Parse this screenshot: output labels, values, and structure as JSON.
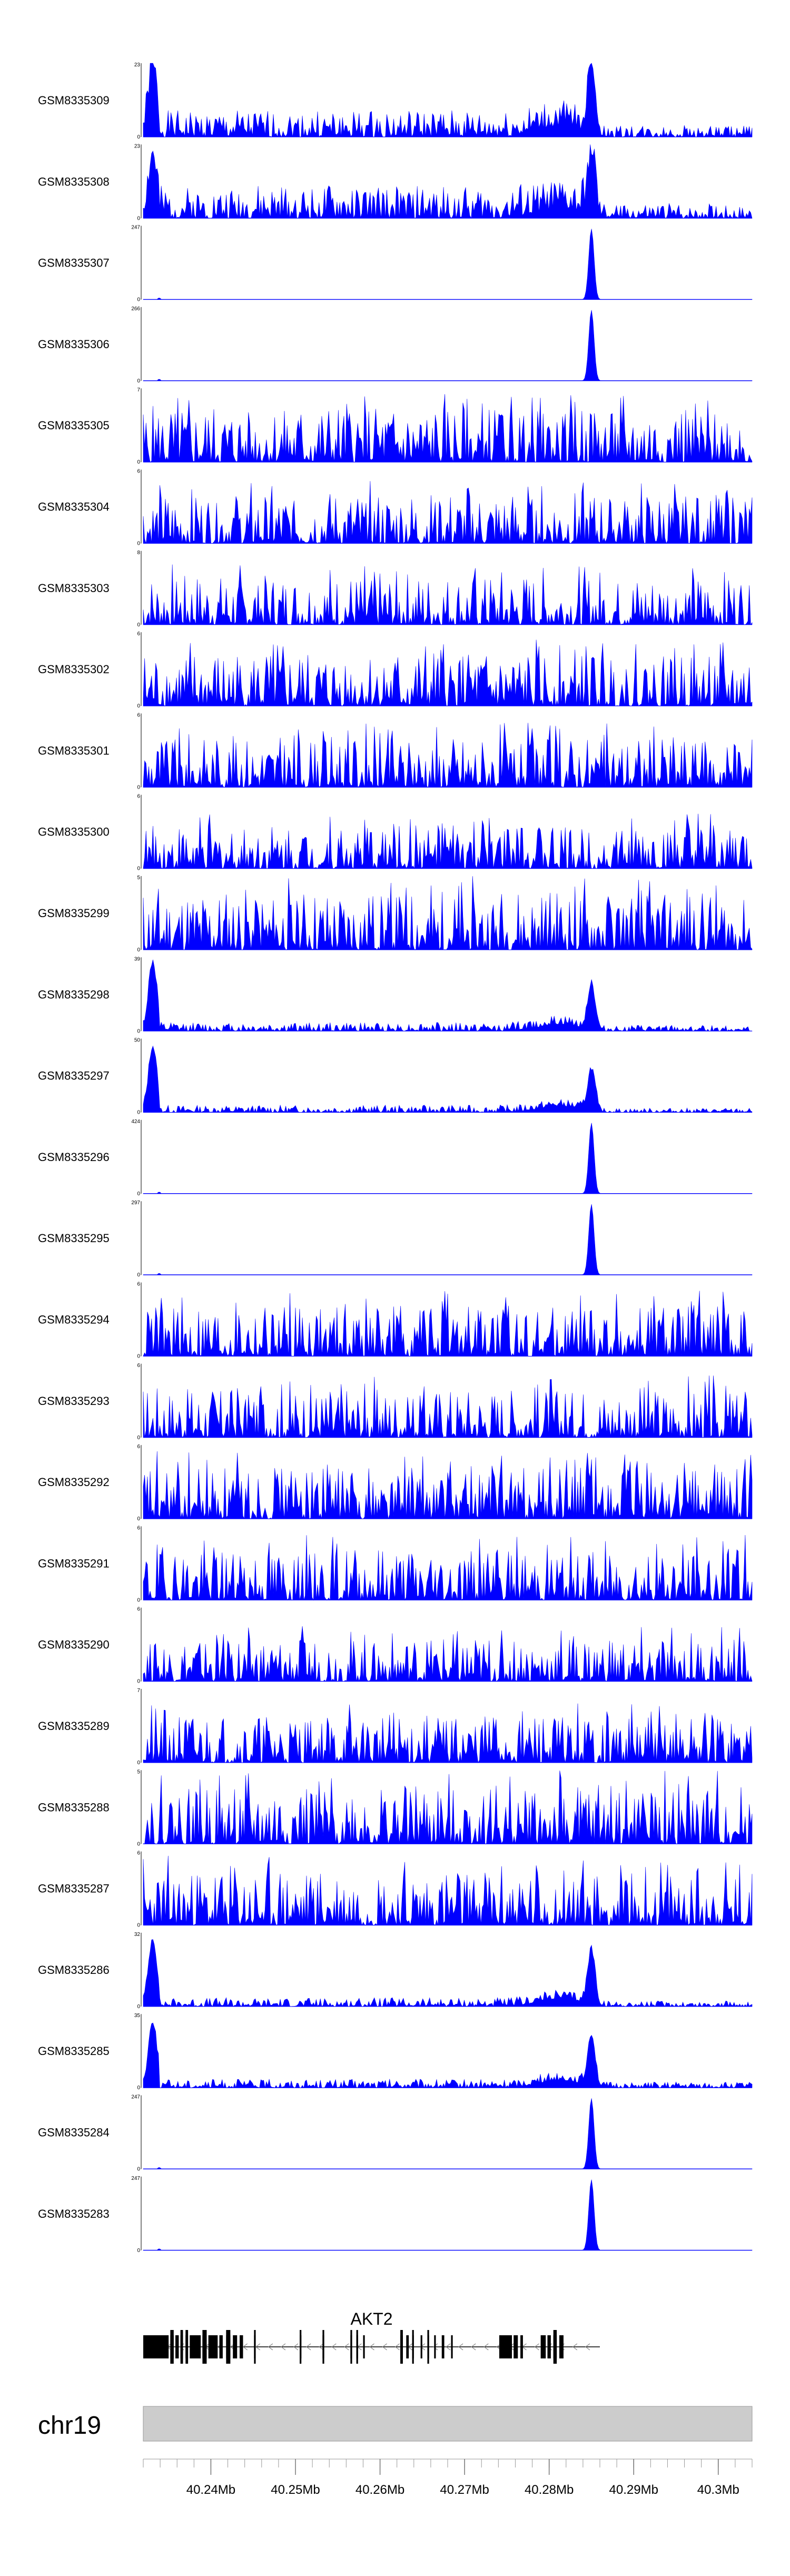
{
  "colors": {
    "signal": "#0000ff",
    "axis": "#000000",
    "ideogram": "#cccccc",
    "baseline": "#0000ff"
  },
  "chart_data": {
    "type": "area",
    "xlim": [
      40232000,
      40304000
    ],
    "tracks": [
      {
        "label": "GSM8335309",
        "ymax_label": "23",
        "ymin_label": "0",
        "max": 23,
        "profile": "noise-peak",
        "base": 0.18,
        "peak_height": 0.95,
        "left_spike": 0.9,
        "right_tail": 0.08,
        "seed": 1
      },
      {
        "label": "GSM8335308",
        "ymax_label": "23",
        "ymin_label": "0",
        "max": 23,
        "profile": "noise-peak",
        "base": 0.22,
        "peak_height": 0.8,
        "left_spike": 0.75,
        "right_tail": 0.1,
        "seed": 2
      },
      {
        "label": "GSM8335307",
        "ymax_label": "247",
        "ymin_label": "0",
        "max": 247,
        "profile": "single-peak",
        "peak_height": 0.96,
        "seed": 3
      },
      {
        "label": "GSM8335306",
        "ymax_label": "266",
        "ymin_label": "0",
        "max": 266,
        "profile": "single-peak",
        "peak_height": 0.96,
        "seed": 4
      },
      {
        "label": "GSM8335305",
        "ymax_label": "7",
        "ymin_label": "0",
        "max": 7,
        "profile": "noise",
        "base": 0.38,
        "seed": 5
      },
      {
        "label": "GSM8335304",
        "ymax_label": "6",
        "ymin_label": "0",
        "max": 6,
        "profile": "noise",
        "base": 0.34,
        "seed": 6
      },
      {
        "label": "GSM8335303",
        "ymax_label": "8",
        "ymin_label": "0",
        "max": 8,
        "profile": "noise",
        "base": 0.33,
        "seed": 7
      },
      {
        "label": "GSM8335302",
        "ymax_label": "6",
        "ymin_label": "0",
        "max": 6,
        "profile": "noise",
        "base": 0.36,
        "seed": 8
      },
      {
        "label": "GSM8335301",
        "ymax_label": "6",
        "ymin_label": "0",
        "max": 6,
        "profile": "noise",
        "base": 0.35,
        "seed": 9
      },
      {
        "label": "GSM8335300",
        "ymax_label": "6",
        "ymin_label": "0",
        "max": 6,
        "profile": "noise",
        "base": 0.3,
        "seed": 10
      },
      {
        "label": "GSM8335299",
        "ymax_label": "5",
        "ymin_label": "0",
        "max": 5,
        "profile": "noise",
        "base": 0.4,
        "seed": 11
      },
      {
        "label": "GSM8335298",
        "ymax_label": "39",
        "ymin_label": "0",
        "max": 39,
        "profile": "noise-peak",
        "base": 0.06,
        "peak_height": 0.6,
        "left_spike": 0.92,
        "right_tail": 0.04,
        "seed": 12
      },
      {
        "label": "GSM8335297",
        "ymax_label": "50",
        "ymin_label": "0",
        "max": 50,
        "profile": "noise-peak",
        "base": 0.05,
        "peak_height": 0.55,
        "left_spike": 0.88,
        "right_tail": 0.03,
        "seed": 13
      },
      {
        "label": "GSM8335296",
        "ymax_label": "424",
        "ymin_label": "0",
        "max": 424,
        "profile": "single-peak",
        "peak_height": 0.96,
        "seed": 14
      },
      {
        "label": "GSM8335295",
        "ymax_label": "297",
        "ymin_label": "0",
        "max": 297,
        "profile": "single-peak",
        "peak_height": 0.96,
        "seed": 15
      },
      {
        "label": "GSM8335294",
        "ymax_label": "6",
        "ymin_label": "0",
        "max": 6,
        "profile": "noise",
        "base": 0.36,
        "seed": 16
      },
      {
        "label": "GSM8335293",
        "ymax_label": "6",
        "ymin_label": "0",
        "max": 6,
        "profile": "noise",
        "base": 0.34,
        "seed": 17
      },
      {
        "label": "GSM8335292",
        "ymax_label": "6",
        "ymin_label": "0",
        "max": 6,
        "profile": "noise",
        "base": 0.37,
        "seed": 18
      },
      {
        "label": "GSM8335291",
        "ymax_label": "6",
        "ymin_label": "0",
        "max": 6,
        "profile": "noise",
        "base": 0.36,
        "seed": 19
      },
      {
        "label": "GSM8335290",
        "ymax_label": "6",
        "ymin_label": "0",
        "max": 6,
        "profile": "noise",
        "base": 0.3,
        "seed": 20
      },
      {
        "label": "GSM8335289",
        "ymax_label": "7",
        "ymin_label": "0",
        "max": 7,
        "profile": "noise",
        "base": 0.33,
        "seed": 21
      },
      {
        "label": "GSM8335288",
        "ymax_label": "5",
        "ymin_label": "0",
        "max": 5,
        "profile": "noise",
        "base": 0.4,
        "seed": 22
      },
      {
        "label": "GSM8335287",
        "ymax_label": "6",
        "ymin_label": "0",
        "max": 6,
        "profile": "noise",
        "base": 0.38,
        "seed": 23
      },
      {
        "label": "GSM8335286",
        "ymax_label": "32",
        "ymin_label": "0",
        "max": 32,
        "profile": "noise-peak",
        "base": 0.06,
        "peak_height": 0.72,
        "left_spike": 0.9,
        "right_tail": 0.04,
        "seed": 24
      },
      {
        "label": "GSM8335285",
        "ymax_label": "35",
        "ymin_label": "0",
        "max": 35,
        "profile": "noise-peak",
        "base": 0.06,
        "peak_height": 0.68,
        "left_spike": 0.88,
        "right_tail": 0.04,
        "seed": 25
      },
      {
        "label": "GSM8335284",
        "ymax_label": "247",
        "ymin_label": "0",
        "max": 247,
        "profile": "single-peak",
        "peak_height": 0.96,
        "seed": 26
      },
      {
        "label": "GSM8335283",
        "ymax_label": "247",
        "ymin_label": "0",
        "max": 247,
        "profile": "single-peak",
        "peak_height": 0.96,
        "seed": 27
      }
    ],
    "peak_position": 40285000,
    "gene": {
      "name": "AKT2",
      "strand": "-",
      "start": 40232000,
      "end": 40286000,
      "exons": [
        [
          40232000,
          40235000
        ],
        [
          40235200,
          40235600
        ],
        [
          40235800,
          40236200
        ],
        [
          40236400,
          40236700
        ],
        [
          40237000,
          40237300
        ],
        [
          40237500,
          40238800
        ],
        [
          40239000,
          40239500
        ],
        [
          40239700,
          40240800
        ],
        [
          40241000,
          40241400
        ],
        [
          40241800,
          40242300
        ],
        [
          40242600,
          40243100
        ],
        [
          40243400,
          40243800
        ],
        [
          40245100,
          40245300
        ],
        [
          40250500,
          40250700
        ],
        [
          40253200,
          40253400
        ],
        [
          40256500,
          40256700
        ],
        [
          40257200,
          40257400
        ],
        [
          40258000,
          40258200
        ],
        [
          40262400,
          40262700
        ],
        [
          40263100,
          40263400
        ],
        [
          40263800,
          40264000
        ],
        [
          40264800,
          40265000
        ],
        [
          40265600,
          40265800
        ],
        [
          40266400,
          40266600
        ],
        [
          40267300,
          40267600
        ],
        [
          40268400,
          40268600
        ],
        [
          40274100,
          40275600
        ],
        [
          40275800,
          40276300
        ],
        [
          40276600,
          40276900
        ],
        [
          40279000,
          40279600
        ],
        [
          40279800,
          40280200
        ],
        [
          40280500,
          40280900
        ],
        [
          40281200,
          40281700
        ]
      ],
      "tall_exons": [
        [
          40235200,
          40235600
        ],
        [
          40236400,
          40236700
        ],
        [
          40237000,
          40237300
        ],
        [
          40239000,
          40239500
        ],
        [
          40241800,
          40242300
        ],
        [
          40245100,
          40245300
        ],
        [
          40250500,
          40250700
        ],
        [
          40253200,
          40253400
        ],
        [
          40256500,
          40256700
        ],
        [
          40257200,
          40257400
        ],
        [
          40262400,
          40262700
        ],
        [
          40263800,
          40264000
        ],
        [
          40265600,
          40265800
        ],
        [
          40280500,
          40280900
        ]
      ]
    },
    "chromosome": "chr19",
    "ticks": [
      {
        "value": 40240000,
        "label": "40.24Mb"
      },
      {
        "value": 40250000,
        "label": "40.25Mb"
      },
      {
        "value": 40260000,
        "label": "40.26Mb"
      },
      {
        "value": 40270000,
        "label": "40.27Mb"
      },
      {
        "value": 40280000,
        "label": "40.28Mb"
      },
      {
        "value": 40290000,
        "label": "40.29Mb"
      },
      {
        "value": 40300000,
        "label": "40.3Mb"
      }
    ],
    "minor_tick_step": 2000
  }
}
